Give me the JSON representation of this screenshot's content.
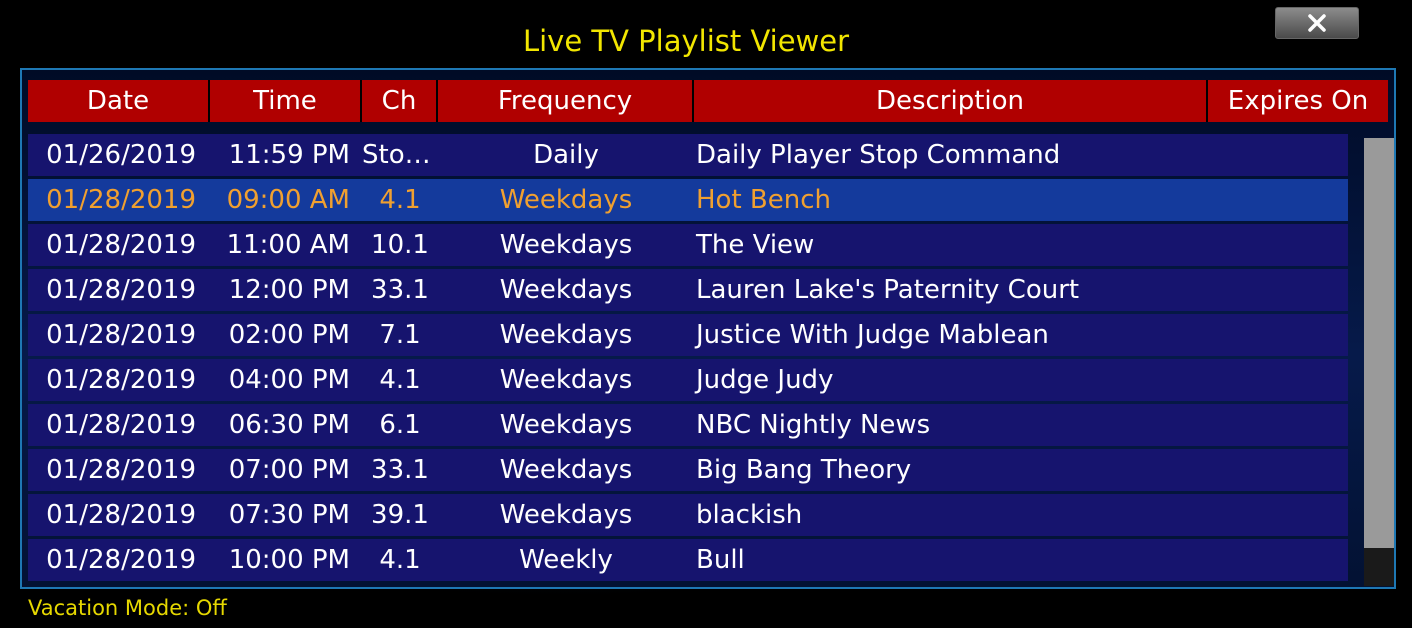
{
  "window": {
    "title": "Live TV Playlist Viewer",
    "close_icon": "close-x-icon"
  },
  "table": {
    "columns": [
      "Date",
      "Time",
      "Ch",
      "Frequency",
      "Description",
      "Expires On"
    ],
    "rows": [
      {
        "date": "01/26/2019",
        "time": "11:59 PM",
        "ch": "Stop...",
        "frequency": "Daily",
        "description": "Daily Player Stop Command",
        "expires": ""
      },
      {
        "date": "01/28/2019",
        "time": "09:00 AM",
        "ch": "4.1",
        "frequency": "Weekdays",
        "description": "Hot Bench",
        "expires": ""
      },
      {
        "date": "01/28/2019",
        "time": "11:00 AM",
        "ch": "10.1",
        "frequency": "Weekdays",
        "description": "The View",
        "expires": ""
      },
      {
        "date": "01/28/2019",
        "time": "12:00 PM",
        "ch": "33.1",
        "frequency": "Weekdays",
        "description": "Lauren Lake's Paternity Court",
        "expires": ""
      },
      {
        "date": "01/28/2019",
        "time": "02:00 PM",
        "ch": "7.1",
        "frequency": "Weekdays",
        "description": "Justice With Judge Mablean",
        "expires": ""
      },
      {
        "date": "01/28/2019",
        "time": "04:00 PM",
        "ch": "4.1",
        "frequency": "Weekdays",
        "description": "Judge Judy",
        "expires": ""
      },
      {
        "date": "01/28/2019",
        "time": "06:30 PM",
        "ch": "6.1",
        "frequency": "Weekdays",
        "description": "NBC Nightly News",
        "expires": ""
      },
      {
        "date": "01/28/2019",
        "time": "07:00 PM",
        "ch": "33.1",
        "frequency": "Weekdays",
        "description": "Big Bang Theory",
        "expires": ""
      },
      {
        "date": "01/28/2019",
        "time": "07:30 PM",
        "ch": "39.1",
        "frequency": "Weekdays",
        "description": "blackish",
        "expires": ""
      },
      {
        "date": "01/28/2019",
        "time": "10:00 PM",
        "ch": "4.1",
        "frequency": "Weekly",
        "description": "Bull",
        "expires": ""
      }
    ],
    "selected_index": 1
  },
  "status": {
    "vacation_mode": "Vacation Mode: Off"
  },
  "colors": {
    "title": "#f2e600",
    "header_bg": "#b00000",
    "row_bg": "#16146e",
    "selected_bg": "#143a9c",
    "selected_text": "#f0a030",
    "frame_border": "#1e78b4"
  }
}
